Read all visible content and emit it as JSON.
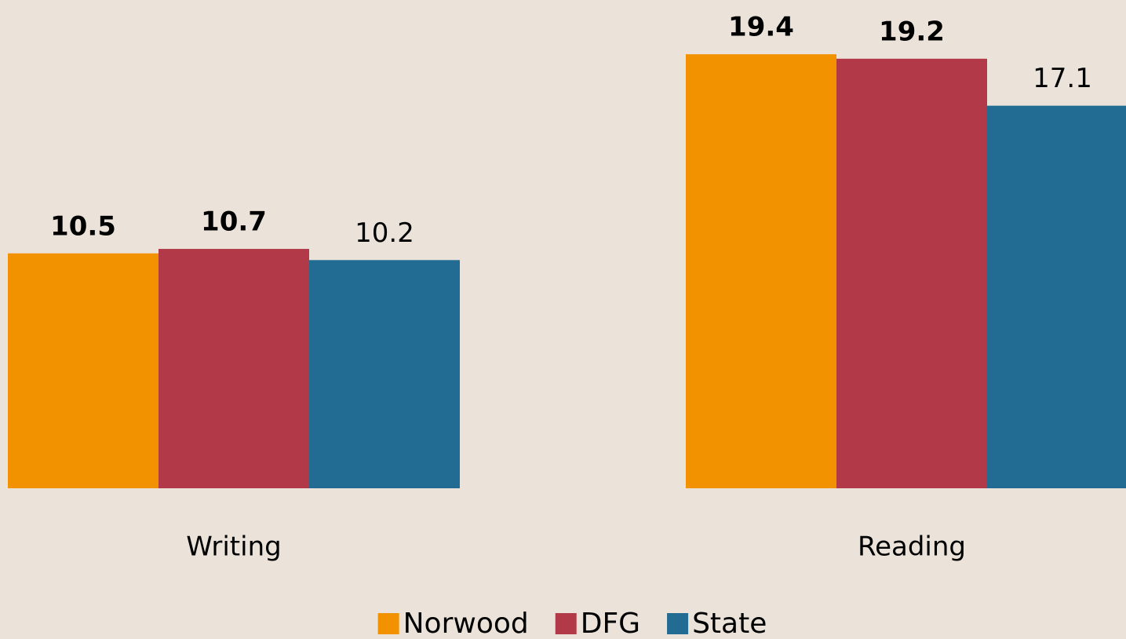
{
  "chart_data": {
    "type": "bar",
    "categories": [
      "Writing",
      "Reading"
    ],
    "series": [
      {
        "name": "Norwood",
        "color": "#f39200",
        "values": [
          10.5,
          19.4
        ]
      },
      {
        "name": "DFG",
        "color": "#b23a48",
        "values": [
          10.7,
          19.2
        ]
      },
      {
        "name": "State",
        "color": "#226b92",
        "values": [
          10.2,
          17.1
        ]
      }
    ],
    "ylim": [
      0,
      20
    ],
    "legend": "bottom"
  }
}
